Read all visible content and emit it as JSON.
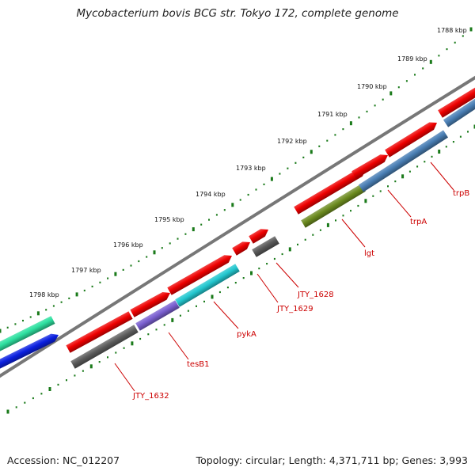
{
  "title": "Mycobacterium bovis BCG str. Tokyo 172, complete genome",
  "footer": {
    "accession": "Accession: NC_012207",
    "summary": "Topology: circular; Length: 4,371,711 bp; Genes: 3,993"
  },
  "kbp_ticks": [
    "1788 kbp",
    "1789 kbp",
    "1790 kbp",
    "1791 kbp",
    "1792 kbp",
    "1793 kbp",
    "1794 kbp",
    "1795 kbp",
    "1796 kbp",
    "1797 kbp",
    "1798 kbp"
  ],
  "gene_labels": [
    "trpB",
    "trpA",
    "lgt",
    "JTY_1628",
    "JTY_1629",
    "pykA",
    "tesB1",
    "JTY_1632"
  ],
  "colors": {
    "backbone": "#777777",
    "tick_green": "#1a7a1a",
    "gene_red": "#ee0000",
    "steel_blue": "#4a7fb5",
    "olive": "#6b8a1e",
    "cyan": "#22c7cf",
    "purple": "#7a5fd0",
    "gray_gene": "#5a5a5a",
    "mint": "#2ee0a0",
    "blue": "#0a1fe0",
    "label_red": "#cc0000"
  }
}
